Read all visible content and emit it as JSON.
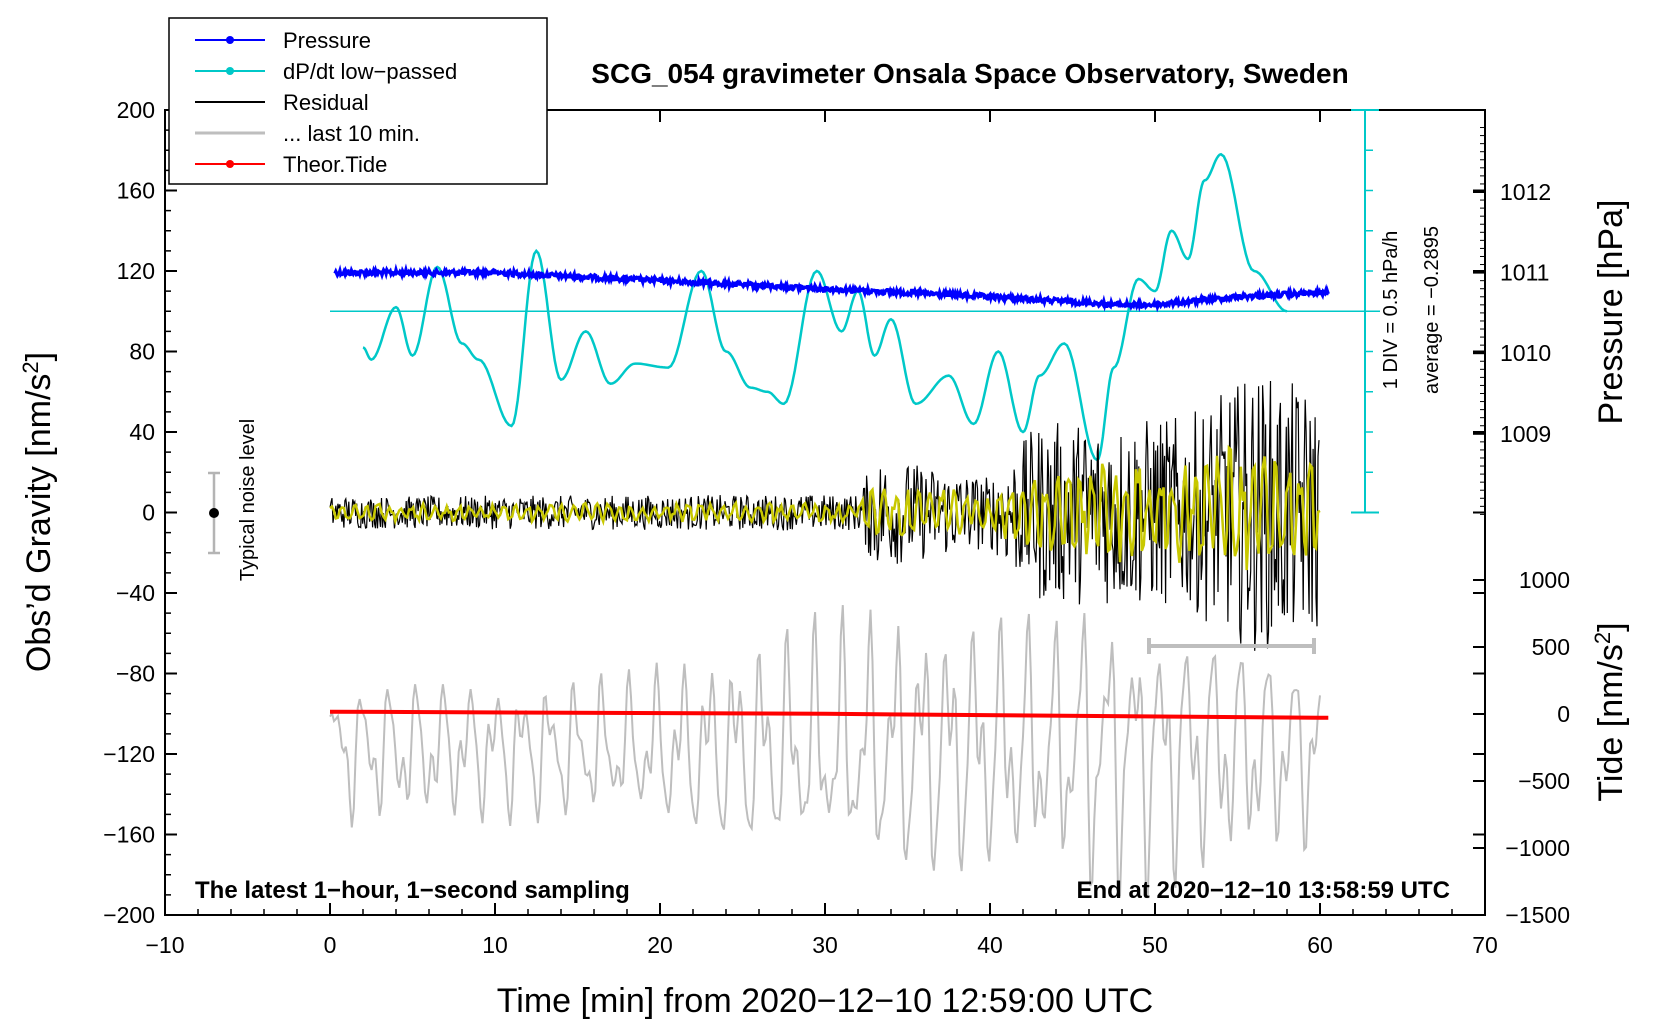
{
  "chart_data": {
    "type": "line",
    "title": "SCG_054 gravimeter Onsala Space Observatory, Sweden",
    "xlabel": "Time [min] from 2020−12−10 12:59:00 UTC",
    "ylabel_left_main": "Obs’d Gravity [nm/s",
    "ylabel_left_sup": "2",
    "ylabel_left_end": "]",
    "ylabel_right_pressure": "Pressure [hPa]",
    "ylabel_right_tide_main": "Tide [nm/s",
    "ylabel_right_tide_sup": "2",
    "ylabel_right_tide_end": "]",
    "xlim": [
      -10,
      70
    ],
    "ylim": [
      -200,
      200
    ],
    "x_ticks": [
      "−10",
      "0",
      "10",
      "20",
      "30",
      "40",
      "50",
      "60",
      "70"
    ],
    "y_ticks": [
      "200",
      "160",
      "120",
      "80",
      "40",
      "0",
      "−40",
      "−80",
      "−120",
      "−160",
      "−200"
    ],
    "pressure_ticks": [
      "1012",
      "1011",
      "1010",
      "1009"
    ],
    "tide_ticks": [
      "1000",
      "500",
      "0",
      "−500",
      "−1000",
      "−1500"
    ],
    "annotations": {
      "bottom_left": "The latest 1−hour, 1−second sampling",
      "bottom_right": "End at 2020−12−10 13:58:59 UTC",
      "noise": "Typical noise level",
      "div": "1 DIV = 0.5 hPa/h",
      "average": "average = −0.2895"
    },
    "legend": [
      {
        "label": "Pressure",
        "color": "#0000ff",
        "marker": true
      },
      {
        "label": "dP/dt low−passed",
        "color": "#00c8c8",
        "marker": true
      },
      {
        "label": "Residual",
        "color": "#000000",
        "marker": false
      },
      {
        "label": "... last 10 min.",
        "color": "#bebebe",
        "marker": false
      },
      {
        "label": "Theor.Tide",
        "color": "#ff0000",
        "marker": true
      }
    ],
    "series": [
      {
        "name": "Pressure",
        "unit": "hPa",
        "x": [
          0,
          10,
          20,
          30,
          40,
          48,
          50,
          55,
          60
        ],
        "values": [
          1011.0,
          1011.0,
          1010.9,
          1010.8,
          1010.7,
          1010.6,
          1010.6,
          1010.7,
          1010.75
        ]
      },
      {
        "name": "dP/dt low-passed",
        "unit": "nm/s2 scale",
        "x": [
          2,
          2.5,
          4,
          5,
          6.5,
          8,
          9,
          11,
          12.5,
          14,
          15.5,
          17,
          18.5,
          20.5,
          22.5,
          24,
          25.5,
          26.5,
          27.5,
          29.5,
          31,
          32,
          33,
          34,
          35.5,
          37.5,
          39,
          40.5,
          42,
          43,
          44.5,
          46.5,
          47.5,
          49,
          50,
          51,
          52,
          53,
          54,
          56,
          58
        ],
        "values": [
          82,
          76,
          102,
          78,
          122,
          84,
          76,
          43,
          130,
          66,
          90,
          64,
          74,
          72,
          120,
          80,
          62,
          60,
          54,
          120,
          90,
          110,
          78,
          96,
          54,
          68,
          44,
          80,
          40,
          68,
          84,
          26,
          72,
          116,
          110,
          140,
          126,
          165,
          178,
          120,
          100
        ]
      },
      {
        "name": "Residual",
        "unit": "nm/s2",
        "amplitude_by_minute": [
          [
            0,
            8
          ],
          [
            32,
            9
          ],
          [
            33,
            28
          ],
          [
            40,
            18
          ],
          [
            43,
            45
          ],
          [
            52,
            48
          ],
          [
            56,
            70
          ],
          [
            60,
            60
          ]
        ]
      },
      {
        "name": "Theor.Tide",
        "unit": "nm/s2",
        "x": [
          0,
          30,
          60
        ],
        "values": [
          -99,
          -100,
          -102
        ]
      }
    ],
    "dpdt_average_line": 100,
    "dpdt_range_bar": [
      0,
      200
    ]
  }
}
